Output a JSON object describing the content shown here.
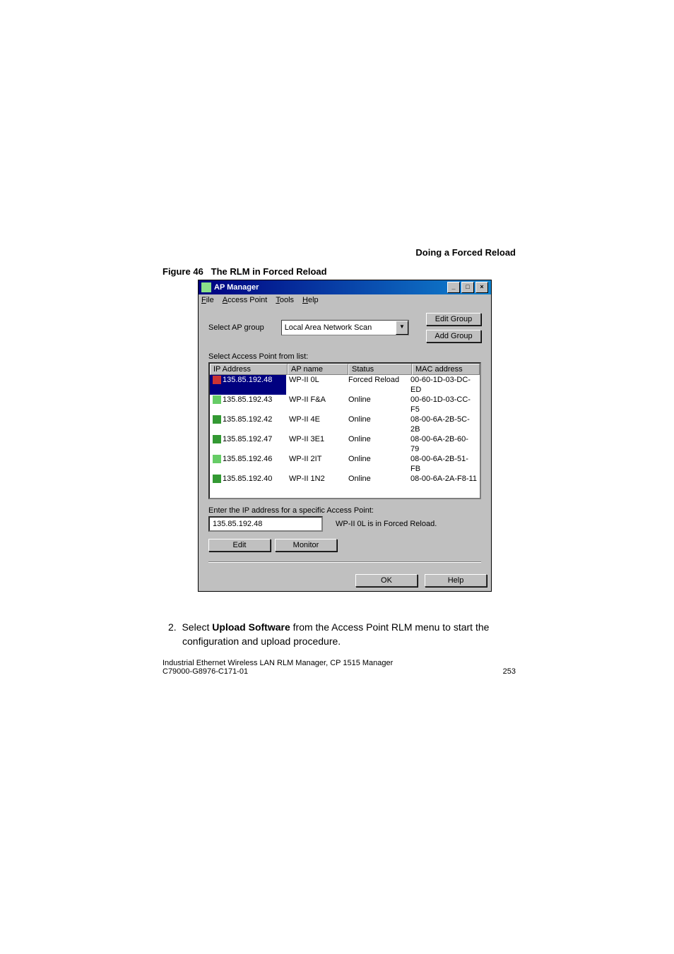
{
  "header_right": "Doing a Forced Reload",
  "figure": {
    "num": "Figure 46",
    "title": "The  RLM in Forced Reload"
  },
  "window": {
    "title": "AP Manager",
    "menus": {
      "file": "File",
      "ap": "Access Point",
      "tools": "Tools",
      "help": "Help"
    },
    "select_group_label": "Select AP group",
    "select_group_value": "Local Area Network Scan",
    "edit_group": "Edit Group",
    "add_group": "Add Group",
    "list_label": "Select Access Point from list:",
    "headers": {
      "ip": "IP Address",
      "name": "AP name",
      "status": "Status",
      "mac": "MAC address"
    },
    "rows": [
      {
        "ip": "135.85.192.48",
        "name": "WP-II 0L",
        "status": "Forced Reload",
        "mac": "00-60-1D-03-DC-ED",
        "selected": true,
        "icon": "red"
      },
      {
        "ip": "135.85.192.43",
        "name": "WP-II F&A",
        "status": "Online",
        "mac": "00-60-1D-03-CC-F5",
        "icon": "g1"
      },
      {
        "ip": "135.85.192.42",
        "name": "WP-II 4E",
        "status": "Online",
        "mac": "08-00-6A-2B-5C-2B",
        "icon": "g2"
      },
      {
        "ip": "135.85.192.47",
        "name": "WP-II 3E1",
        "status": "Online",
        "mac": "08-00-6A-2B-60-79",
        "icon": "g2"
      },
      {
        "ip": "135.85.192.46",
        "name": "WP-II 2IT",
        "status": "Online",
        "mac": "08-00-6A-2B-51-FB",
        "icon": "g1"
      },
      {
        "ip": "135.85.192.40",
        "name": "WP-II 1N2",
        "status": "Online",
        "mac": "08-00-6A-2A-F8-11",
        "icon": "g2"
      }
    ],
    "ip_label": "Enter the IP address for a specific Access Point:",
    "ip_value": "135.85.192.48",
    "status_msg": "WP-II 0L is in Forced Reload.",
    "edit_btn": "Edit",
    "monitor_btn": "Monitor",
    "ok_btn": "OK",
    "help_btn": "Help"
  },
  "step": {
    "num": "2.",
    "pre": "Select ",
    "bold": "Upload Software",
    "post": " from the Access Point RLM menu to start the configuration and upload procedure."
  },
  "footer": {
    "line1": "Industrial Ethernet Wireless LAN  RLM Manager,  CP 1515 Manager",
    "line2": "C79000-G8976-C171-01",
    "page": "253"
  }
}
